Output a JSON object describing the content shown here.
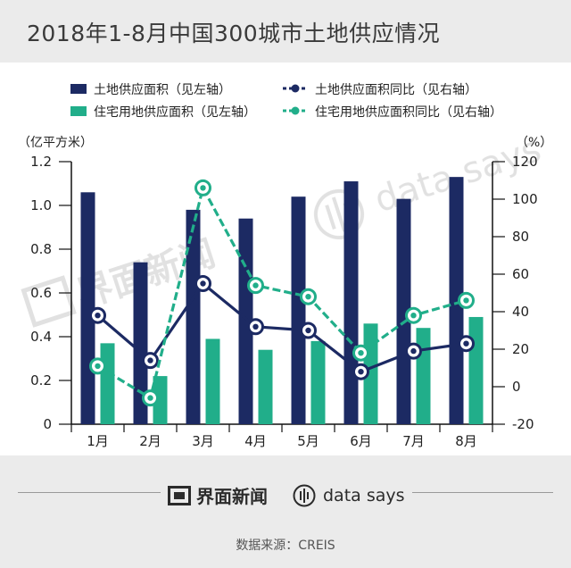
{
  "title": "2018年1-8月中国300城市土地供应情况",
  "watermark": {
    "left": "界面新闻",
    "right": "data says"
  },
  "footer": {
    "brand": "界面新闻",
    "partner": "data says",
    "source": "数据来源：CREIS"
  },
  "colors": {
    "land": "#1c2a63",
    "residential": "#21ae8a"
  },
  "chart_data": {
    "type": "bar+line",
    "categories": [
      "1月",
      "2月",
      "3月",
      "4月",
      "5月",
      "6月",
      "7月",
      "8月"
    ],
    "left_axis": {
      "unit_label": "（亿平方米）",
      "range": [
        0,
        1.2
      ],
      "ticks": [
        "0",
        "0.2",
        "0.4",
        "0.6",
        "0.8",
        "1.0",
        "1.2"
      ]
    },
    "right_axis": {
      "unit_label": "（%）",
      "range": [
        -20,
        120
      ],
      "ticks": [
        "-20",
        "0",
        "20",
        "40",
        "60",
        "80",
        "100",
        "120"
      ]
    },
    "legend": {
      "land_area": "土地供应面积（见左轴）",
      "land_yoy": "土地供应面积同比（见右轴）",
      "res_area": "住宅用地供应面积（见左轴）",
      "res_yoy": "住宅用地供应面积同比（见右轴）"
    },
    "series": [
      {
        "name": "土地供应面积（见左轴）",
        "type": "bar",
        "axis": "left",
        "values": [
          1.06,
          0.74,
          0.98,
          0.94,
          1.04,
          1.11,
          1.03,
          1.13
        ]
      },
      {
        "name": "住宅用地供应面积（见左轴）",
        "type": "bar",
        "axis": "left",
        "values": [
          0.37,
          0.22,
          0.39,
          0.34,
          0.38,
          0.46,
          0.44,
          0.49
        ]
      },
      {
        "name": "土地供应面积同比（见右轴）",
        "type": "line",
        "axis": "right",
        "values": [
          38,
          14,
          55,
          32,
          30,
          8,
          19,
          23
        ]
      },
      {
        "name": "住宅用地供应面积同比（见右轴）",
        "type": "line",
        "axis": "right",
        "values": [
          11,
          -6,
          106,
          54,
          48,
          18,
          38,
          46
        ]
      }
    ]
  }
}
